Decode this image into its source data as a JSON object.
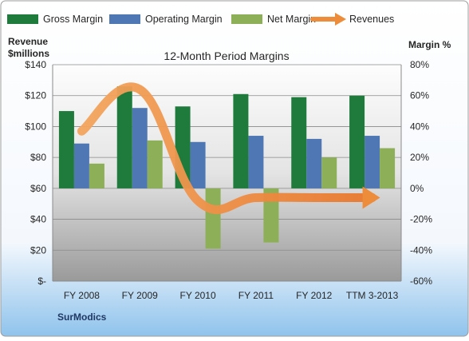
{
  "chart_data": {
    "type": "bar",
    "title": "12-Month Period Margins",
    "company": "SurModics",
    "left_axis": {
      "label_line1": "Revenue",
      "label_line2": "$millions",
      "range": [
        0,
        140
      ],
      "ticks": [
        0,
        20,
        40,
        60,
        80,
        100,
        120,
        140
      ],
      "tick_labels": [
        "$-",
        "$20",
        "$40",
        "$60",
        "$80",
        "$100",
        "$120",
        "$140"
      ]
    },
    "right_axis": {
      "label": "Margin %",
      "range": [
        -60,
        80
      ],
      "ticks": [
        -60,
        -40,
        -20,
        0,
        20,
        40,
        60,
        80
      ],
      "tick_labels": [
        "-60%",
        "-40%",
        "-20%",
        "0%",
        "20%",
        "40%",
        "60%",
        "80%"
      ]
    },
    "categories": [
      "FY 2008",
      "FY 2009",
      "FY 2010",
      "FY 2011",
      "FY 2012",
      "TTM 3-2013"
    ],
    "series": [
      {
        "name": "Gross Margin",
        "kind": "bar",
        "axis": "right",
        "color": "#1e7b3c",
        "values": [
          50,
          66,
          53,
          61,
          59,
          60
        ]
      },
      {
        "name": "Operating Margin",
        "kind": "bar",
        "axis": "right",
        "color": "#4f77b3",
        "values": [
          29,
          52,
          30,
          34,
          32,
          34
        ]
      },
      {
        "name": "Net Margin",
        "kind": "bar",
        "axis": "right",
        "color": "#8daf57",
        "values": [
          16,
          31,
          -39,
          -35,
          20,
          26
        ]
      },
      {
        "name": "Revenues",
        "kind": "line",
        "axis": "left",
        "color": "#ed8c3a",
        "values": [
          97,
          124,
          52,
          54,
          54,
          54
        ]
      }
    ],
    "grid": true,
    "legend_position": "top"
  }
}
